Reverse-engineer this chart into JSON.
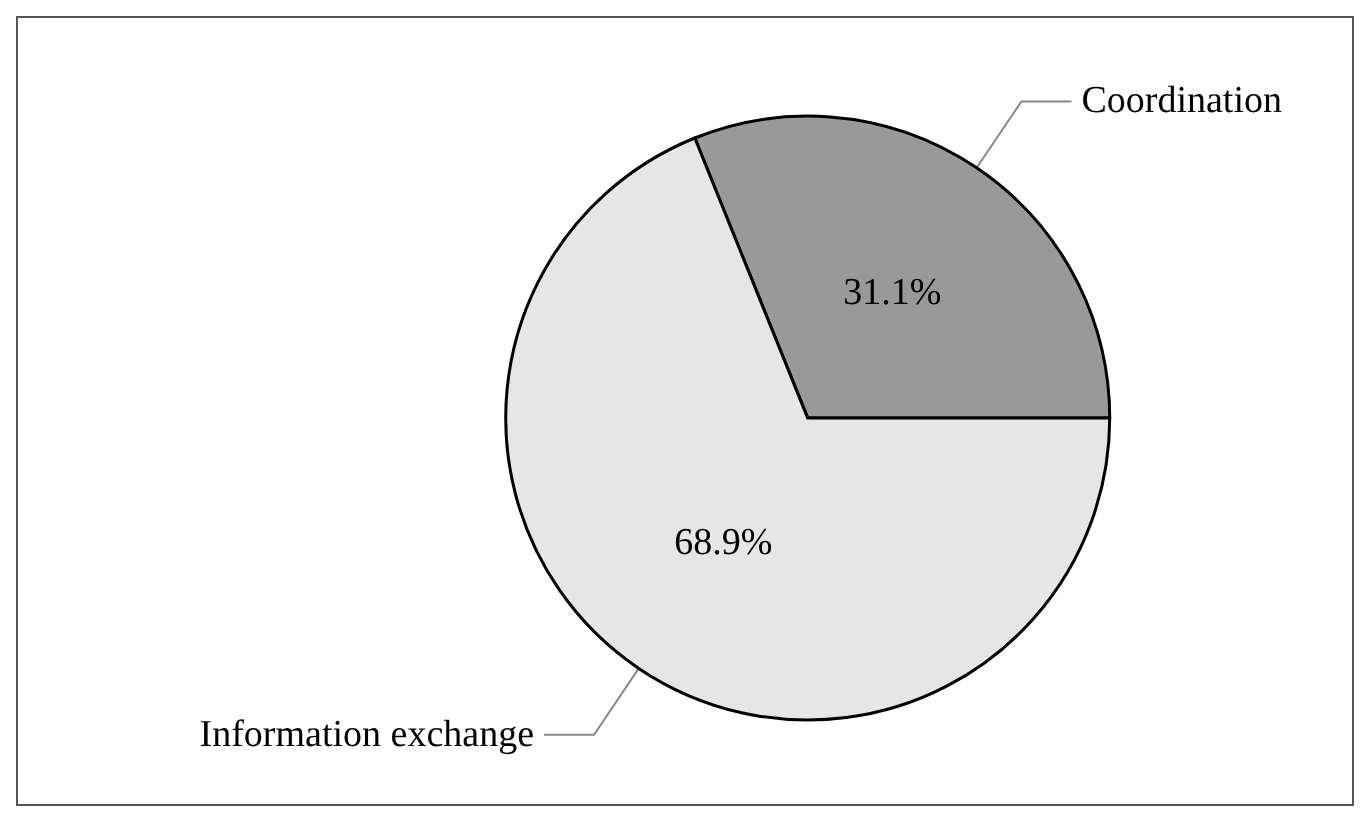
{
  "chart_data": {
    "type": "pie",
    "categories": [
      "Coordination",
      "Information exchange"
    ],
    "values": [
      31.1,
      68.9
    ],
    "value_labels": [
      "31.1%",
      "68.9%"
    ],
    "colors": [
      "#999999",
      "#e6e6e6"
    ],
    "legend": false
  }
}
